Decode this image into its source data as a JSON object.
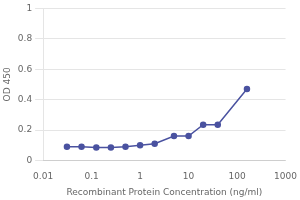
{
  "chart_data": {
    "type": "line",
    "x_label": "Recombinant Protein Concentration (ng/ml)",
    "y_label": "OD 450",
    "x": [
      0.031,
      0.062,
      0.125,
      0.25,
      0.5,
      1.0,
      2.0,
      5.0,
      10.0,
      20.0,
      40.0,
      160.0
    ],
    "values": [
      0.09,
      0.09,
      0.085,
      0.085,
      0.09,
      0.1,
      0.11,
      0.16,
      0.16,
      0.235,
      0.235,
      0.47
    ],
    "color": "#4a52a0",
    "marker": "circle",
    "log": "x",
    "xlim": [
      0.01,
      1000
    ],
    "xticks": [
      0.01,
      0.1,
      1,
      10,
      100,
      1000
    ],
    "ylim": [
      0,
      1
    ],
    "yticks": [
      0,
      0.2,
      0.4,
      0.6,
      0.8,
      1
    ],
    "grid": "y"
  }
}
